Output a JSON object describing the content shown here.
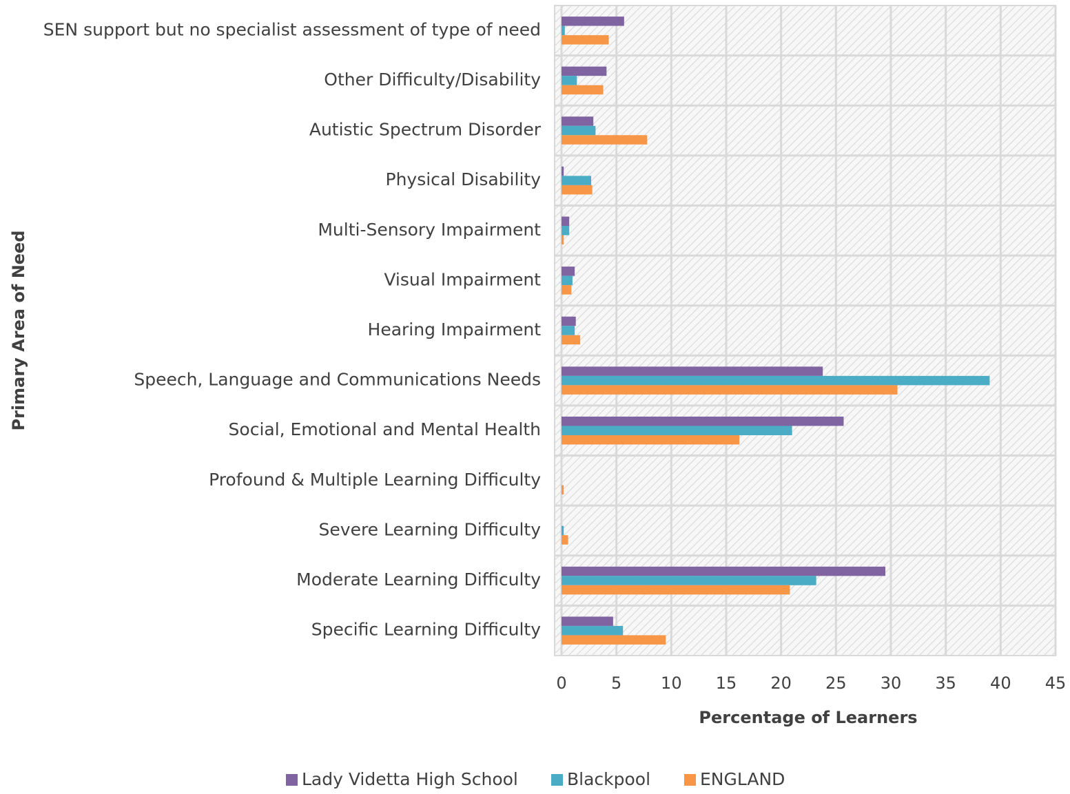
{
  "chart_data": {
    "type": "bar",
    "orientation": "horizontal",
    "x_label": "Percentage of Learners",
    "y_label": "Primary Area of Need",
    "categories": [
      "SEN support but no specialist assessment of type of need",
      "Other Difficulty/Disability",
      "Autistic Spectrum Disorder",
      "Physical Disability",
      "Multi-Sensory Impairment",
      "Visual Impairment",
      "Hearing Impairment",
      "Speech, Language and Communications Needs",
      "Social, Emotional and Mental Health",
      "Profound & Multiple Learning Difficulty",
      "Severe Learning Difficulty",
      "Moderate Learning Difficulty",
      "Specific Learning Difficulty"
    ],
    "series": [
      {
        "name": "Lady Videtta High School",
        "color": "#8064a2",
        "values": [
          5.7,
          4.1,
          2.9,
          0.2,
          0.7,
          1.2,
          1.3,
          23.8,
          25.7,
          0,
          0,
          29.5,
          4.7
        ]
      },
      {
        "name": "Blackpool",
        "color": "#4bacc6",
        "values": [
          0.3,
          1.4,
          3.1,
          2.7,
          0.7,
          1.0,
          1.2,
          39.0,
          21.0,
          0,
          0.2,
          23.2,
          5.6
        ]
      },
      {
        "name": "ENGLAND",
        "color": "#f79646",
        "values": [
          4.3,
          3.8,
          7.8,
          2.8,
          0.2,
          0.9,
          1.7,
          30.6,
          16.2,
          0.2,
          0.6,
          20.8,
          9.5
        ]
      }
    ],
    "xlim": [
      0,
      45
    ],
    "xticks": [
      0,
      5,
      10,
      15,
      20,
      25,
      30,
      35,
      40,
      45
    ],
    "grid": true,
    "legend": "bottom"
  }
}
